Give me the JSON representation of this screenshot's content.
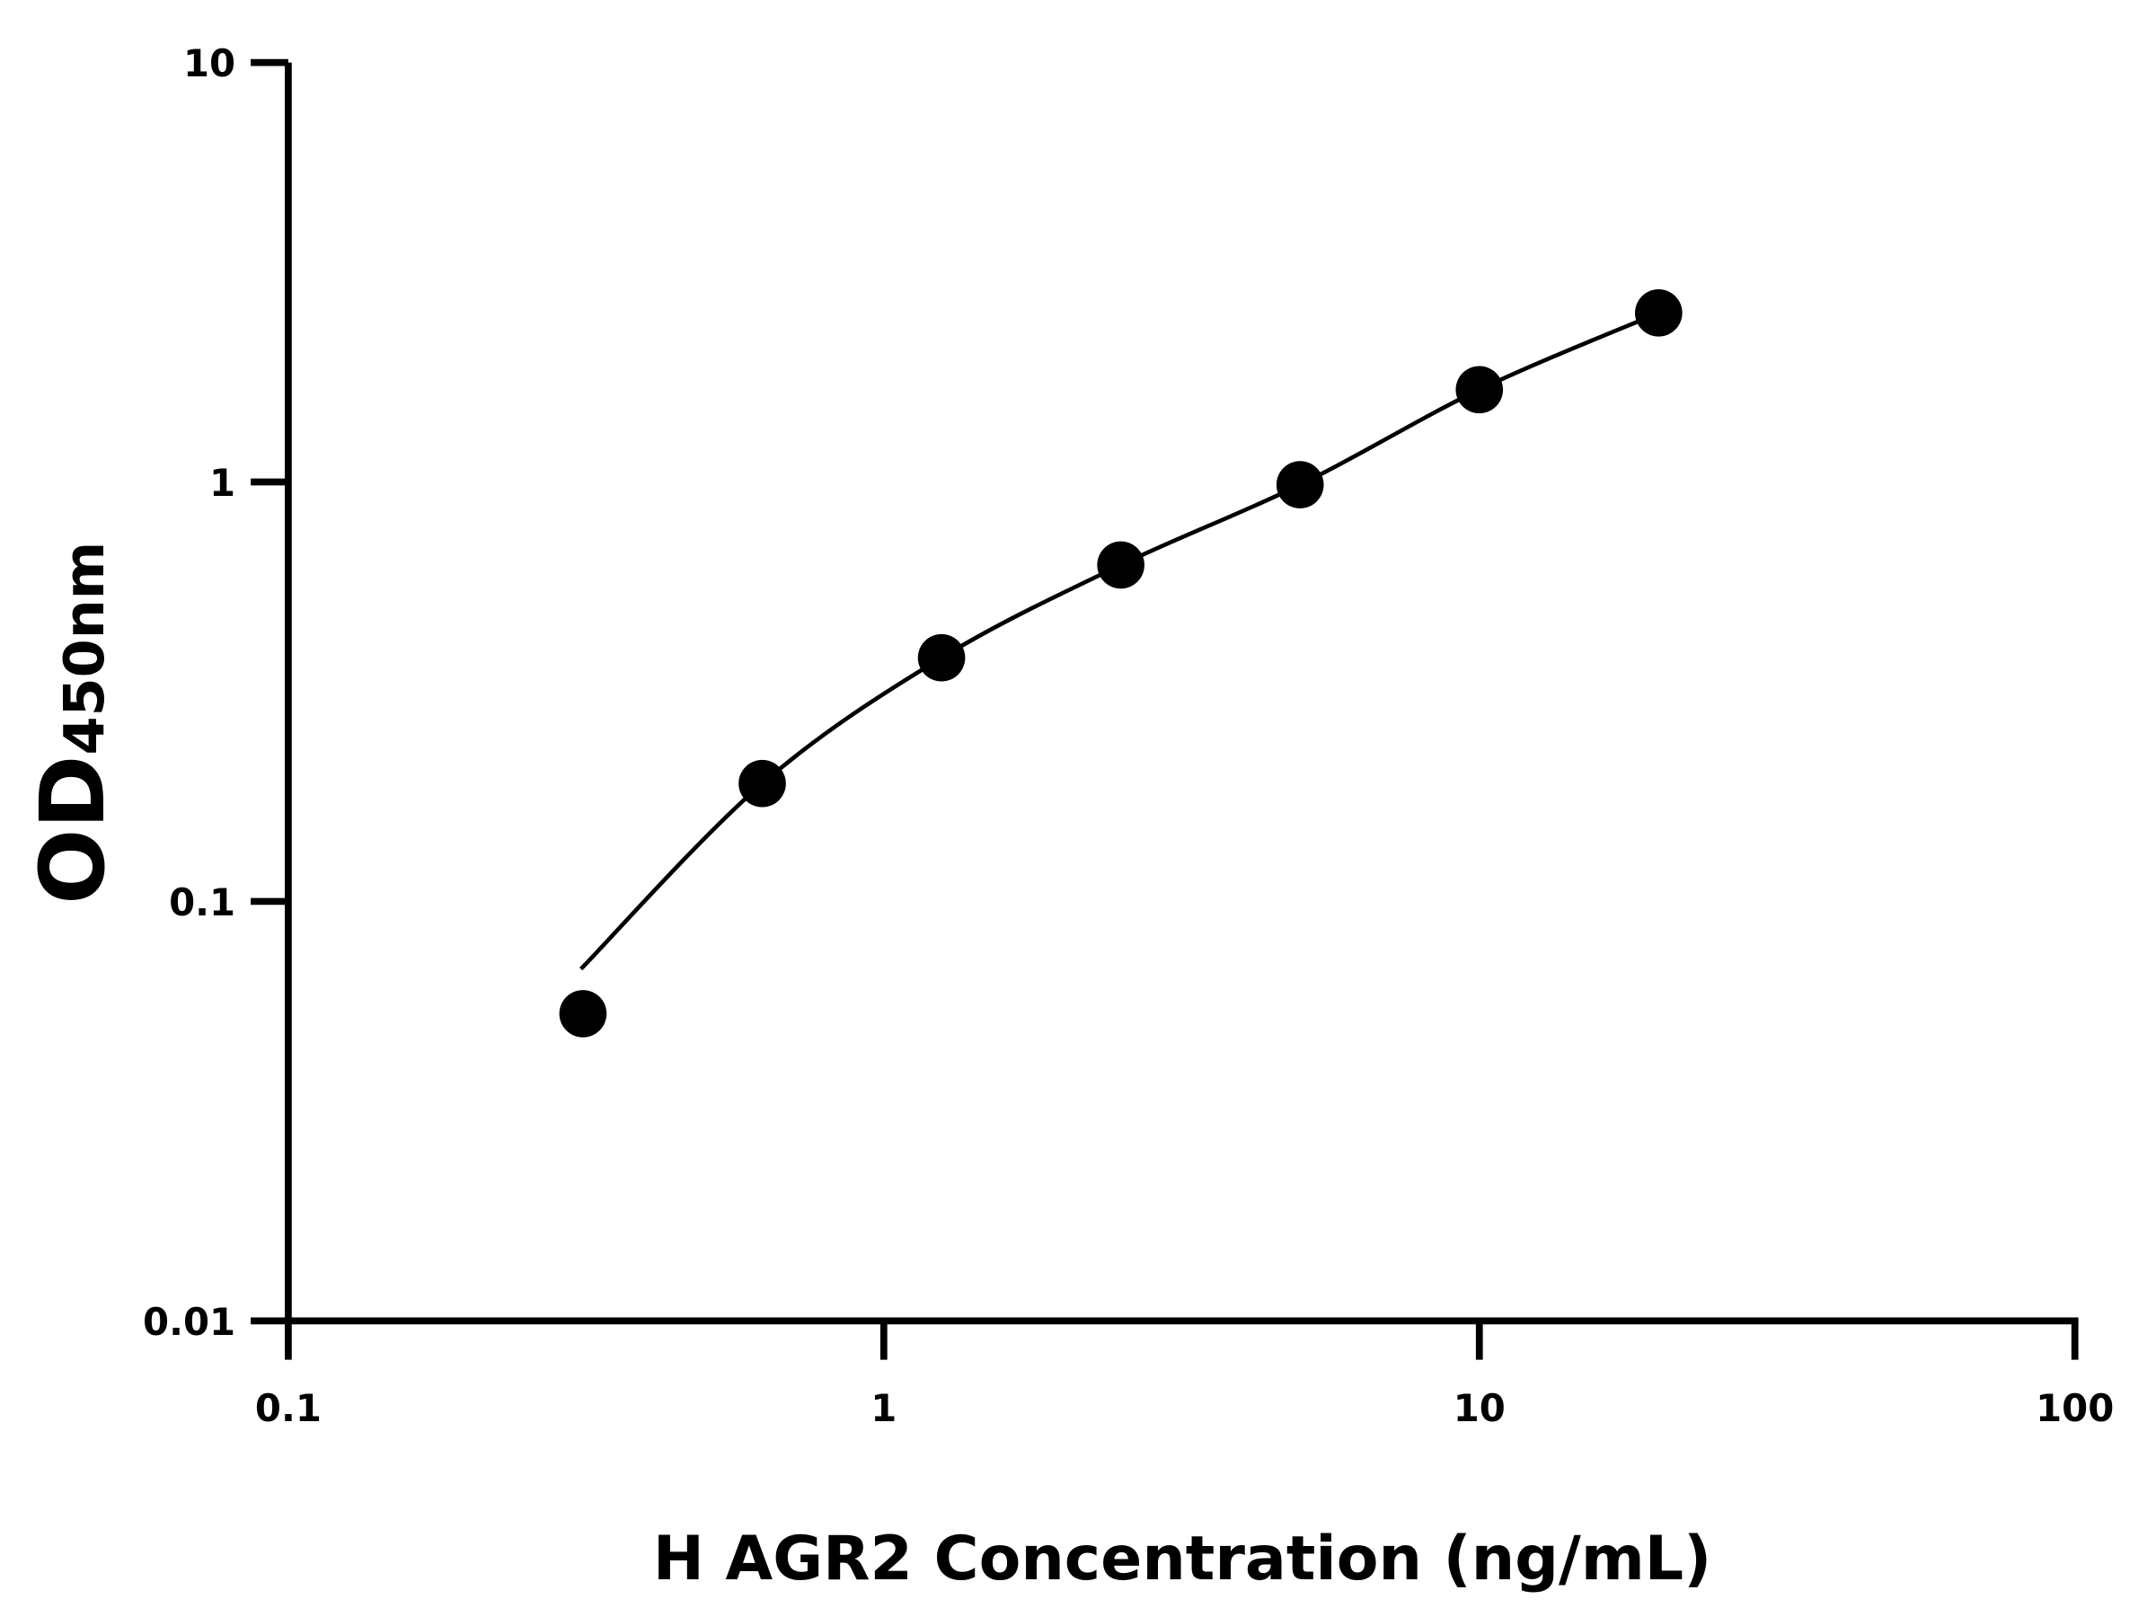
{
  "chart_data": {
    "type": "scatter",
    "title": "",
    "xlabel": "H AGR2 Concentration (ng/mL)",
    "ylabel": {
      "main": "OD",
      "sub": "450nm"
    },
    "xscale": "log",
    "yscale": "log",
    "xlim": [
      0.1,
      100
    ],
    "ylim": [
      0.01,
      10
    ],
    "xticks": [
      "0.1",
      "1",
      "10",
      "100"
    ],
    "yticks": [
      "0.01",
      "0.1",
      "1",
      "10"
    ],
    "grid": false,
    "colors": {
      "points": "#000000",
      "curve": "#000000"
    },
    "points": {
      "x": [
        0.3125,
        0.625,
        1.25,
        2.5,
        5,
        10,
        20
      ],
      "y": [
        0.054,
        0.191,
        0.381,
        0.634,
        0.985,
        1.66,
        2.53
      ]
    },
    "fit_curve": {
      "x": [
        0.31,
        0.625,
        1.25,
        2.5,
        5,
        10,
        20
      ],
      "y": [
        0.069,
        0.191,
        0.381,
        0.634,
        0.985,
        1.66,
        2.53
      ]
    }
  }
}
